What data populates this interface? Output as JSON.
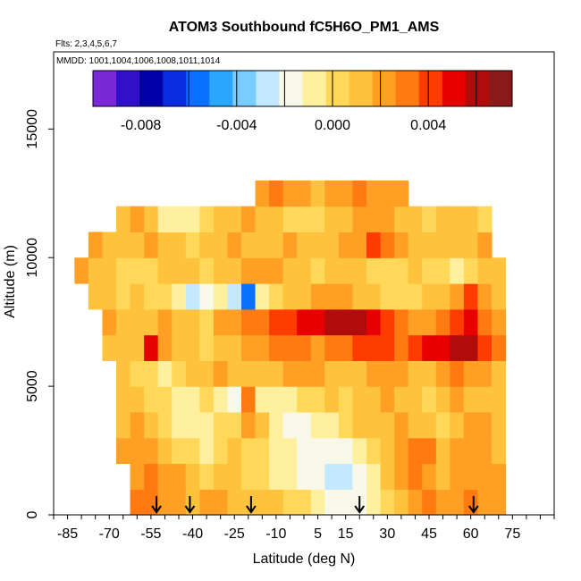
{
  "chart_data": {
    "type": "heatmap",
    "title": "ATOM3 Southbound fC5H6O_PM1_AMS",
    "flights_note": "Flts: 2,3,4,5,6,7",
    "mmdd_note": "MMDD: 1001,1004,1006,1008,1011,1014",
    "xlabel": "Latitude (deg N)",
    "ylabel": "Altitude (m)",
    "xlim": [
      -90,
      90
    ],
    "ylim": [
      0,
      18000
    ],
    "x_ticks": [
      -85,
      -70,
      -55,
      -40,
      -25,
      -10,
      5,
      15,
      30,
      45,
      60,
      75
    ],
    "y_ticks": [
      0,
      5000,
      10000,
      15000
    ],
    "y_tick_labels": [
      "0",
      "5000",
      "10000",
      "15000"
    ],
    "colorbar": {
      "range": [
        -0.01,
        0.0075
      ],
      "tick_values": [
        -0.008,
        -0.004,
        0.0,
        0.004
      ],
      "tick_labels": [
        "-0.008",
        "-0.004",
        "0.000",
        "0.004"
      ],
      "colors": [
        "#7a28d8",
        "#3010c8",
        "#0000a8",
        "#0a2ce0",
        "#0a70ff",
        "#2aa6ff",
        "#78ccff",
        "#c4e8ff",
        "#f8f8e8",
        "#fff0a0",
        "#ffd85a",
        "#ffc23c",
        "#ffa024",
        "#ff7a10",
        "#ff3c00",
        "#e80000",
        "#b00c0c",
        "#8a1a1a"
      ],
      "placement": "top, inside plot"
    },
    "sounding_latitudes": [
      -53,
      -41,
      -19,
      20,
      61
    ],
    "latitude_bins": [
      -80,
      -75,
      -70,
      -65,
      -60,
      -55,
      -50,
      -45,
      -40,
      -35,
      -30,
      -25,
      -20,
      -15,
      -10,
      -5,
      0,
      5,
      10,
      15,
      20,
      25,
      30,
      35,
      40,
      45,
      50,
      55,
      60,
      65,
      70
    ],
    "altitude_bins": [
      500,
      1500,
      2500,
      3500,
      4500,
      5500,
      6500,
      7500,
      8500,
      9500,
      10500,
      11500,
      12500
    ],
    "value_grid_rows_by_altitude": [
      [
        null,
        null,
        null,
        null,
        0.003,
        0.0028,
        0.0025,
        0.0026,
        0.0015,
        0.0018,
        0.002,
        0.0015,
        0.001,
        0.0012,
        0.001,
        0.0005,
        0.0,
        -0.001,
        -0.0015,
        -0.002,
        -0.0015,
        -0.001,
        0.0005,
        0.0015,
        0.0025,
        0.003,
        0.002,
        0.0025,
        0.003,
        0.0025,
        0.002
      ],
      [
        null,
        null,
        null,
        null,
        0.0025,
        0.003,
        0.0022,
        0.002,
        0.001,
        0.0005,
        0.0008,
        0.0015,
        0.0005,
        0.0,
        -0.0005,
        -0.001,
        -0.0015,
        -0.002,
        -0.0025,
        -0.003,
        -0.002,
        -0.001,
        0.001,
        0.0025,
        0.0035,
        0.002,
        0.0015,
        0.002,
        0.0025,
        0.002,
        0.0018
      ],
      [
        null,
        null,
        null,
        0.002,
        0.0025,
        0.0022,
        0.0015,
        0.0005,
        0.0,
        -0.0005,
        0.0005,
        0.001,
        0.0005,
        0.0005,
        -0.0005,
        -0.001,
        -0.0015,
        -0.0015,
        -0.002,
        -0.0015,
        -0.001,
        0.0,
        0.001,
        0.002,
        0.003,
        0.003,
        0.0015,
        0.002,
        0.0022,
        0.002,
        0.0015
      ],
      [
        null,
        null,
        null,
        0.0015,
        0.002,
        0.001,
        0.0005,
        -0.0005,
        -0.001,
        -0.0005,
        0.0,
        0.0005,
        0.0025,
        0.001,
        -0.001,
        -0.0015,
        -0.002,
        -0.001,
        -0.0005,
        0.0005,
        0.001,
        0.001,
        0.0015,
        0.002,
        0.0015,
        0.001,
        0.0005,
        0.0015,
        0.002,
        0.0018,
        0.0015
      ],
      [
        null,
        null,
        null,
        0.0015,
        0.001,
        0.0005,
        0.0,
        -0.001,
        -0.0005,
        0.0,
        -0.0005,
        -0.002,
        0.0035,
        -0.0005,
        -0.001,
        -0.0005,
        0.0,
        0.0005,
        0.001,
        0.0005,
        0.001,
        0.0015,
        0.002,
        0.0015,
        0.001,
        0.0005,
        0.001,
        0.002,
        0.0015,
        0.001,
        0.001
      ],
      [
        null,
        null,
        null,
        0.001,
        0.0005,
        0.0,
        -0.0005,
        0.0005,
        0.001,
        0.0015,
        0.002,
        0.0015,
        0.0015,
        0.001,
        0.0015,
        0.002,
        0.0025,
        0.002,
        0.0015,
        0.001,
        0.0015,
        0.002,
        0.0025,
        0.002,
        0.0015,
        0.001,
        0.002,
        0.003,
        0.0025,
        0.002,
        0.0015
      ],
      [
        null,
        null,
        0.0015,
        0.001,
        0.0015,
        0.0055,
        0.002,
        0.0015,
        0.001,
        0.0005,
        0.001,
        0.0015,
        0.002,
        0.0025,
        0.003,
        0.0035,
        0.003,
        0.0025,
        0.003,
        0.0035,
        0.004,
        0.0045,
        0.004,
        0.0035,
        0.0045,
        0.005,
        0.0055,
        0.006,
        0.0058,
        0.004,
        0.003
      ],
      [
        null,
        null,
        0.002,
        0.0015,
        0.001,
        0.0015,
        0.002,
        0.0015,
        0.001,
        0.0005,
        0.002,
        0.0025,
        0.003,
        0.0035,
        0.004,
        0.0045,
        0.005,
        0.0055,
        0.006,
        0.0065,
        0.006,
        0.005,
        0.004,
        0.003,
        0.0025,
        0.002,
        0.003,
        0.004,
        0.005,
        0.0035,
        0.0025
      ],
      [
        null,
        0.0015,
        0.001,
        0.0005,
        0.001,
        0.0005,
        0.0,
        -0.0005,
        -0.003,
        -0.002,
        -0.001,
        -0.0025,
        -0.006,
        -0.001,
        0.0005,
        0.001,
        0.0015,
        0.002,
        0.0025,
        0.002,
        0.0015,
        0.001,
        0.0005,
        0.0,
        0.0005,
        0.001,
        0.0015,
        0.0025,
        0.004,
        0.002,
        0.0015
      ],
      [
        0.002,
        0.0015,
        0.001,
        0.0005,
        0.0,
        0.0005,
        0.001,
        0.0015,
        0.001,
        0.0005,
        0.001,
        0.0015,
        0.002,
        0.0025,
        0.002,
        0.0015,
        0.001,
        0.0005,
        0.001,
        0.0015,
        0.001,
        0.0005,
        0.0,
        0.0005,
        0.001,
        0.0005,
        0.0,
        -0.0005,
        0.0005,
        0.001,
        0.0015
      ],
      [
        null,
        0.002,
        0.0015,
        0.001,
        0.0015,
        0.002,
        0.0015,
        0.001,
        0.0005,
        0.001,
        0.0015,
        0.002,
        0.0015,
        0.001,
        0.0015,
        0.002,
        0.0015,
        0.001,
        0.0015,
        0.002,
        0.0025,
        0.0045,
        0.003,
        0.002,
        0.0015,
        0.001,
        0.0015,
        0.001,
        0.0015,
        0.002,
        null
      ],
      [
        null,
        null,
        null,
        0.0015,
        0.002,
        0.0015,
        -0.0005,
        -0.001,
        -0.0005,
        0.0005,
        0.001,
        0.0015,
        0.002,
        0.0015,
        0.001,
        0.0005,
        0.0,
        0.0005,
        0.001,
        0.0015,
        0.002,
        0.0025,
        0.002,
        0.0015,
        0.001,
        0.0005,
        0.001,
        0.0015,
        0.001,
        0.0005,
        null
      ],
      [
        null,
        null,
        null,
        null,
        null,
        null,
        null,
        null,
        null,
        null,
        null,
        null,
        null,
        0.0025,
        0.003,
        0.0025,
        0.002,
        0.0015,
        0.002,
        0.0025,
        0.003,
        0.0025,
        0.002,
        0.0025,
        null,
        null,
        null,
        null,
        null,
        null,
        null
      ]
    ]
  }
}
